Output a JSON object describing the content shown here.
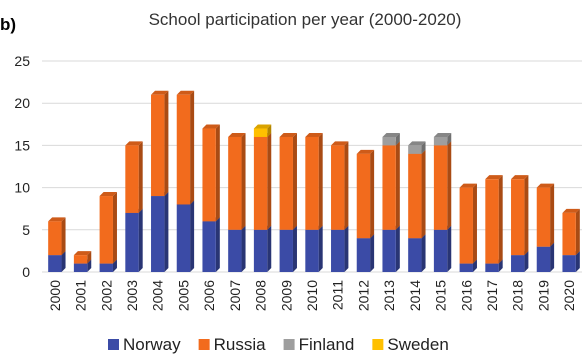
{
  "chart_data": {
    "type": "bar",
    "stacked": true,
    "panel_label": "b)",
    "title": "School participation per year (2000-2020)",
    "xlabel": "",
    "ylabel": "",
    "ylim": [
      0,
      25
    ],
    "yticks": [
      0,
      5,
      10,
      15,
      20,
      25
    ],
    "grid": true,
    "legend_position": "bottom",
    "categories": [
      "2000",
      "2001",
      "2002",
      "2003",
      "2004",
      "2005",
      "2006",
      "2007",
      "2008",
      "2009",
      "2010",
      "2011",
      "2012",
      "2013",
      "2014",
      "2015",
      "2016",
      "2017",
      "2018",
      "2019",
      "2020"
    ],
    "series": [
      {
        "name": "Norway",
        "color": "#3B4BA6",
        "values": [
          2,
          1,
          1,
          7,
          9,
          8,
          6,
          5,
          5,
          5,
          5,
          5,
          4,
          5,
          4,
          5,
          1,
          1,
          2,
          3,
          2
        ]
      },
      {
        "name": "Russia",
        "color": "#F26B1D",
        "values": [
          4,
          1,
          8,
          8,
          12,
          13,
          11,
          11,
          11,
          11,
          11,
          10,
          10,
          10,
          10,
          10,
          9,
          10,
          9,
          7,
          5
        ]
      },
      {
        "name": "Finland",
        "color": "#9E9E9E",
        "values": [
          0,
          0,
          0,
          0,
          0,
          0,
          0,
          0,
          0,
          0,
          0,
          0,
          0,
          1,
          1,
          1,
          0,
          0,
          0,
          0,
          0
        ]
      },
      {
        "name": "Sweden",
        "color": "#FFC000",
        "values": [
          0,
          0,
          0,
          0,
          0,
          0,
          0,
          0,
          1,
          0,
          0,
          0,
          0,
          0,
          0,
          0,
          0,
          0,
          0,
          0,
          0
        ]
      }
    ]
  }
}
